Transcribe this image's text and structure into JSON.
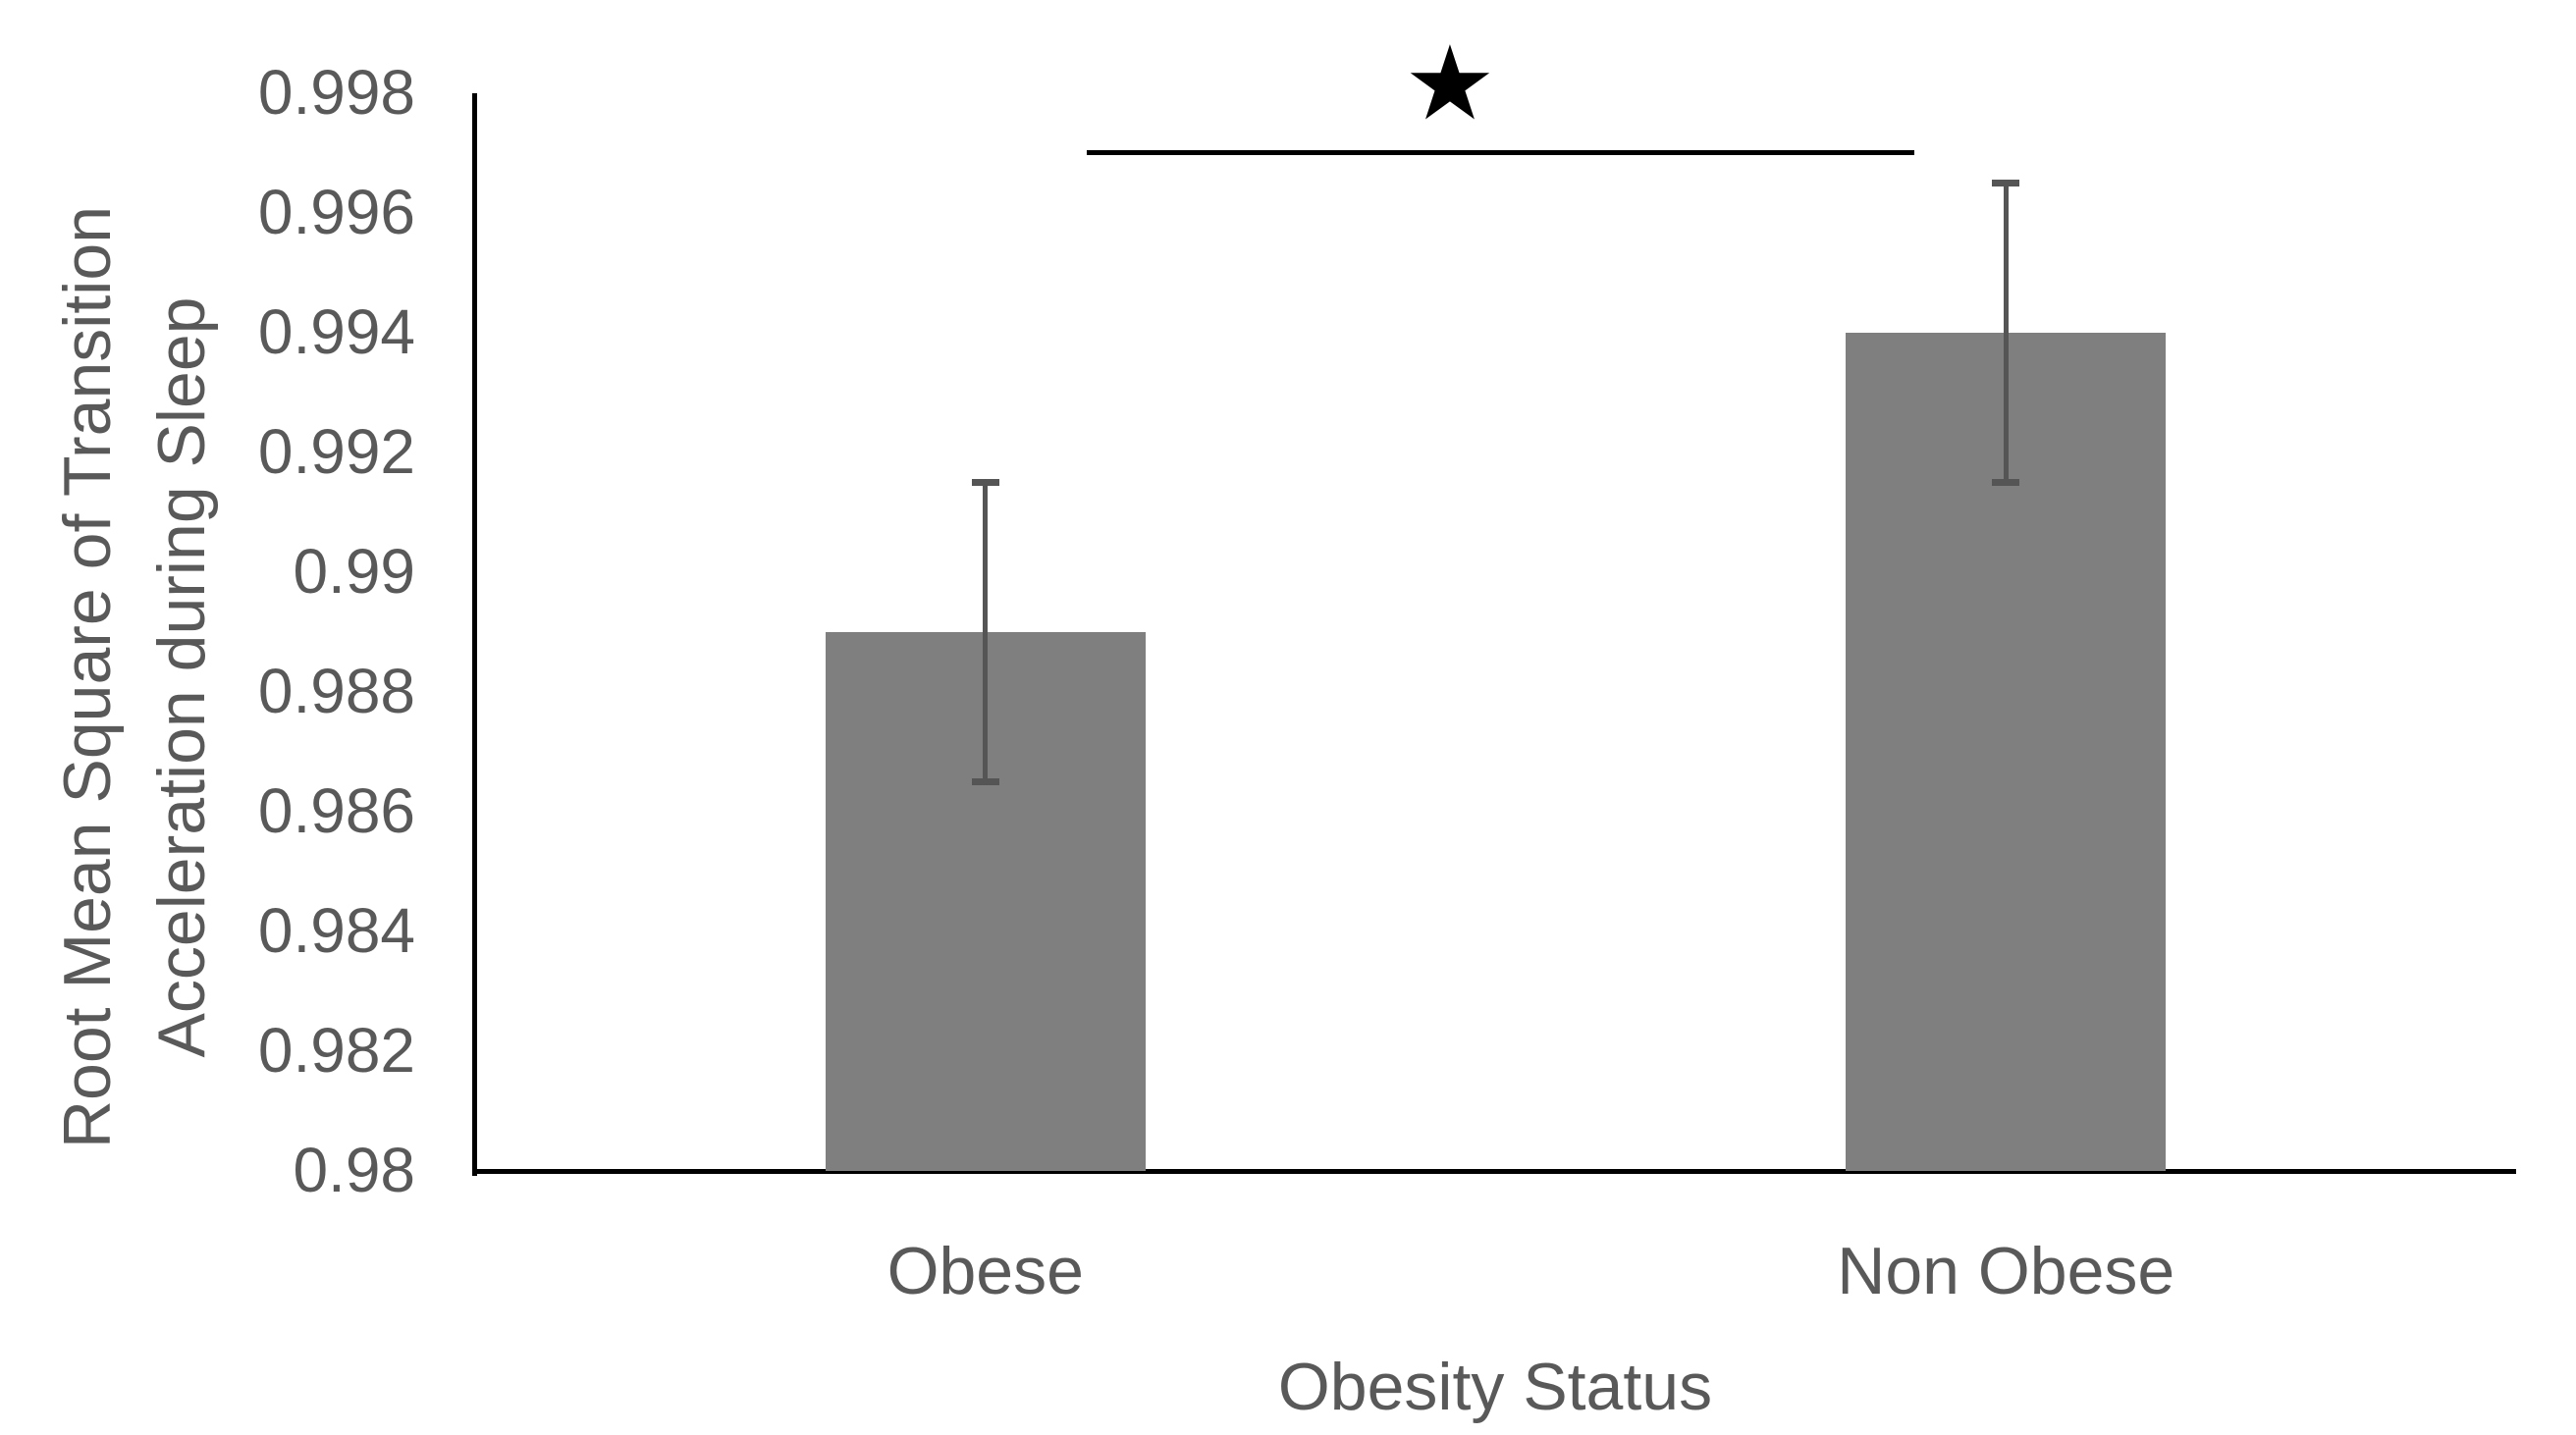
{
  "chart_data": {
    "type": "bar",
    "title": "",
    "categories": [
      "Obese",
      "Non Obese"
    ],
    "values": [
      0.989,
      0.994
    ],
    "error_bars": {
      "type": "symmetric",
      "values": [
        0.0025,
        0.0025
      ]
    },
    "xlabel": "Obesity Status",
    "ylabel": "Root Mean Square of Transition Acceleration during Sleep",
    "ylabel_lines": [
      "Root Mean Square of Transition",
      "Acceleration during Sleep"
    ],
    "ylim": [
      0.98,
      0.998
    ],
    "ytick_step": 0.002,
    "ytick_labels": [
      "0.998",
      "0.996",
      "0.994",
      "0.992",
      "0.99",
      "0.988",
      "0.986",
      "0.984",
      "0.982",
      "0.98"
    ],
    "grid": false,
    "legend": false,
    "colors": {
      "bar": "#7f7f7f",
      "error_bar": "#555555",
      "axis": "#000000",
      "text": "#595959",
      "background": "#ffffff"
    },
    "significance": {
      "symbol": "★",
      "between": [
        "Obese",
        "Non Obese"
      ],
      "color": "#000000"
    }
  }
}
